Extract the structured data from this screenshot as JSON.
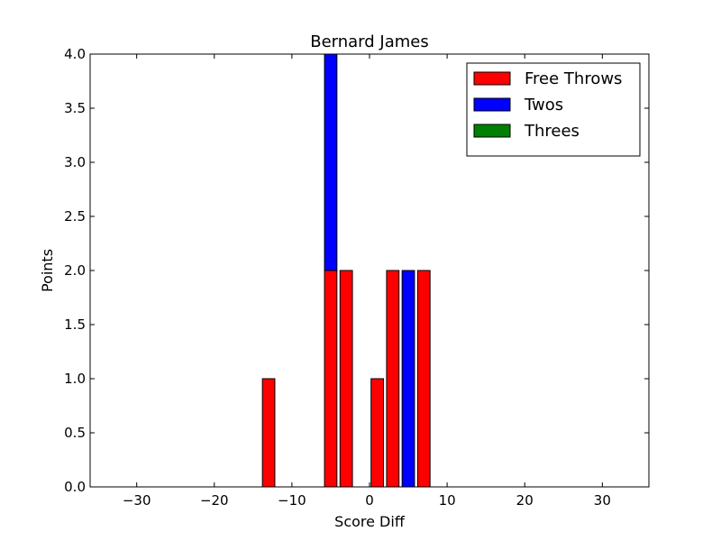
{
  "chart_data": {
    "type": "bar",
    "title": "Bernard James",
    "xlabel": "Score Diff",
    "ylabel": "Points",
    "xlim": [
      -36,
      36
    ],
    "ylim": [
      0,
      4.0
    ],
    "xticks": [
      -30,
      -20,
      -10,
      0,
      10,
      20,
      30
    ],
    "xtick_labels": [
      "−30",
      "−20",
      "−10",
      "0",
      "10",
      "20",
      "30"
    ],
    "yticks": [
      0,
      0.5,
      1.0,
      1.5,
      2.0,
      2.5,
      3.0,
      3.5,
      4.0
    ],
    "ytick_labels": [
      "0.0",
      "0.5",
      "1.0",
      "1.5",
      "2.0",
      "2.5",
      "3.0",
      "3.5",
      "4.0"
    ],
    "stacked": true,
    "bar_width": 1.6,
    "x": [
      -35,
      -34,
      -33,
      -32,
      -31,
      -30,
      -29,
      -28,
      -27,
      -26,
      -25,
      -24,
      -23,
      -22,
      -21,
      -20,
      -19,
      -18,
      -17,
      -16,
      -15,
      -14,
      -13,
      -12,
      -11,
      -10,
      -9,
      -8,
      -7,
      -6,
      -5,
      -4,
      -3,
      -2,
      -1,
      0,
      1,
      2,
      3,
      4,
      5,
      6,
      7,
      8,
      9,
      10,
      11,
      12,
      13,
      14,
      15,
      16,
      17,
      18,
      19,
      20,
      21,
      22,
      23,
      24,
      25,
      26,
      27,
      28,
      29,
      30,
      31,
      32,
      33,
      34,
      35
    ],
    "series": [
      {
        "name": "Free Throws",
        "color": "#ff0000",
        "values": [
          0,
          0,
          0,
          0,
          0,
          0,
          0,
          0,
          0,
          0,
          0,
          0,
          0,
          0,
          0,
          0,
          0,
          0,
          0,
          0,
          0,
          0,
          1,
          0,
          0,
          0,
          0,
          0,
          0,
          0,
          2,
          0,
          2,
          0,
          0,
          0,
          1,
          0,
          2,
          0,
          0,
          0,
          2,
          0,
          0,
          0,
          0,
          0,
          0,
          0,
          0,
          0,
          0,
          0,
          0,
          0,
          0,
          0,
          0,
          0,
          0,
          0,
          0,
          0,
          0,
          0,
          0,
          0,
          0,
          0,
          0
        ]
      },
      {
        "name": "Twos",
        "color": "#0000ff",
        "values": [
          0,
          0,
          0,
          0,
          0,
          0,
          0,
          0,
          0,
          0,
          0,
          0,
          0,
          0,
          0,
          0,
          0,
          0,
          0,
          0,
          0,
          0,
          0,
          0,
          0,
          0,
          0,
          0,
          0,
          0,
          2,
          0,
          0,
          0,
          0,
          0,
          0,
          0,
          0,
          0,
          2,
          0,
          0,
          0,
          0,
          0,
          0,
          0,
          0,
          0,
          0,
          0,
          0,
          0,
          0,
          0,
          0,
          0,
          0,
          0,
          0,
          0,
          0,
          0,
          0,
          0,
          0,
          0,
          0,
          0,
          0
        ]
      },
      {
        "name": "Threes",
        "color": "#008000",
        "values": [
          0,
          0,
          0,
          0,
          0,
          0,
          0,
          0,
          0,
          0,
          0,
          0,
          0,
          0,
          0,
          0,
          0,
          0,
          0,
          0,
          0,
          0,
          0,
          0,
          0,
          0,
          0,
          0,
          0,
          0,
          0,
          0,
          0,
          0,
          0,
          0,
          0,
          0,
          0,
          0,
          0,
          0,
          0,
          0,
          0,
          0,
          0,
          0,
          0,
          0,
          0,
          0,
          0,
          0,
          0,
          0,
          0,
          0,
          0,
          0,
          0,
          0,
          0,
          0,
          0,
          0,
          0,
          0,
          0,
          0,
          0
        ]
      }
    ],
    "legend_position": "top-right",
    "grid": false
  }
}
